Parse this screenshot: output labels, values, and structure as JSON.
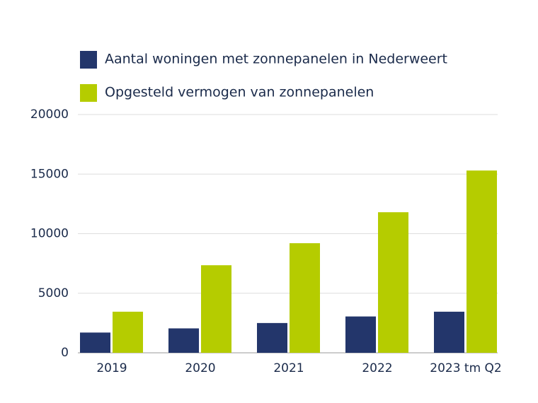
{
  "chart_data": {
    "type": "bar",
    "categories": [
      "2019",
      "2020",
      "2021",
      "2022",
      "2023 tm Q2"
    ],
    "series": [
      {
        "name": "Aantal woningen met zonnepanelen in Nederweert",
        "color": "#23366b",
        "values": [
          1700,
          2050,
          2500,
          3050,
          3450
        ]
      },
      {
        "name": "Opgesteld vermogen van zonnepanelen",
        "color": "#b5cc00",
        "values": [
          3450,
          7350,
          9200,
          11800,
          15300
        ]
      }
    ],
    "ylim": [
      0,
      20000
    ],
    "yticks": [
      0,
      5000,
      10000,
      15000,
      20000
    ],
    "grid": true,
    "legend": "top"
  }
}
